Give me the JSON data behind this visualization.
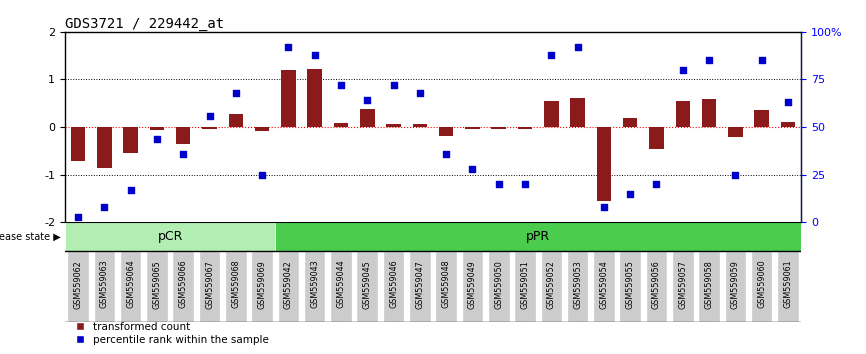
{
  "title": "GDS3721 / 229442_at",
  "samples": [
    "GSM559062",
    "GSM559063",
    "GSM559064",
    "GSM559065",
    "GSM559066",
    "GSM559067",
    "GSM559068",
    "GSM559069",
    "GSM559042",
    "GSM559043",
    "GSM559044",
    "GSM559045",
    "GSM559046",
    "GSM559047",
    "GSM559048",
    "GSM559049",
    "GSM559050",
    "GSM559051",
    "GSM559052",
    "GSM559053",
    "GSM559054",
    "GSM559055",
    "GSM559056",
    "GSM559057",
    "GSM559058",
    "GSM559059",
    "GSM559060",
    "GSM559061"
  ],
  "bar_values": [
    -0.72,
    -0.85,
    -0.55,
    -0.07,
    -0.35,
    -0.05,
    0.27,
    -0.08,
    1.2,
    1.22,
    0.08,
    0.38,
    0.07,
    0.07,
    -0.18,
    -0.05,
    -0.05,
    -0.05,
    0.55,
    0.62,
    -1.55,
    0.2,
    -0.45,
    0.55,
    0.6,
    -0.2,
    0.35,
    0.1
  ],
  "scatter_values": [
    3,
    8,
    17,
    44,
    36,
    56,
    68,
    25,
    92,
    88,
    72,
    64,
    72,
    68,
    36,
    28,
    20,
    20,
    88,
    92,
    8,
    15,
    20,
    80,
    85,
    25,
    85,
    63
  ],
  "pCR_count": 8,
  "pPR_count": 20,
  "ylim_left": [
    -2,
    2
  ],
  "ylim_right": [
    0,
    100
  ],
  "yticks_left": [
    -2,
    -1,
    0,
    1,
    2
  ],
  "yticks_right": [
    0,
    25,
    50,
    75,
    100
  ],
  "ytick_right_labels": [
    "0",
    "25",
    "50",
    "75",
    "100%"
  ],
  "bar_color": "#8B1A1A",
  "scatter_color": "#0000CC",
  "pCR_color": "#B2EEB2",
  "pPR_color": "#4CCC4C",
  "title_fontsize": 10,
  "legend_bar_label": "transformed count",
  "legend_scatter_label": "percentile rank within the sample",
  "disease_state_label": "disease state",
  "pCR_label": "pCR",
  "pPR_label": "pPR"
}
